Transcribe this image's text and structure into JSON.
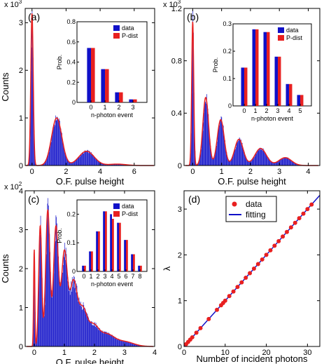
{
  "figure": {
    "colors": {
      "data": "#1010c8",
      "pdist": "#e82020",
      "fit": "#1010c8",
      "axis": "#000000"
    }
  },
  "chart_data": [
    {
      "panel": "(a)",
      "type": "bar",
      "xlabel": "O.F. pulse height",
      "ylabel": "Counts",
      "xlim": [
        -0.4,
        7.2
      ],
      "ylim": [
        0,
        3.3
      ],
      "scale_label": "x 10^3",
      "scale_base": "x 10",
      "scale_exp": "3",
      "xticks": [
        "0",
        "2",
        "4",
        "6"
      ],
      "yticks": [
        "0",
        "1",
        "2",
        "3"
      ],
      "peaks": [
        {
          "center": 0.0,
          "sigma": 0.07,
          "height": 3.2
        },
        {
          "center": 1.45,
          "sigma": 0.3,
          "height": 1.0
        },
        {
          "center": 3.2,
          "sigma": 0.45,
          "height": 0.3
        },
        {
          "center": 5.0,
          "sigma": 0.5,
          "height": 0.03
        }
      ],
      "inset": {
        "type": "bar",
        "xlabel": "n-photon event",
        "ylabel": "Prob.",
        "categories": [
          "0",
          "1",
          "2",
          "3"
        ],
        "ylim": [
          0,
          0.8
        ],
        "yticks": [
          "0",
          "0.2",
          "0.4",
          "0.6",
          "0.8"
        ],
        "series": [
          {
            "name": "data",
            "values": [
              0.54,
              0.33,
              0.1,
              0.03
            ]
          },
          {
            "name": "P-dist",
            "values": [
              0.54,
              0.33,
              0.1,
              0.03
            ]
          }
        ]
      }
    },
    {
      "panel": "(b)",
      "type": "bar",
      "xlabel": "O.F. pulse height",
      "ylabel": "",
      "xlim": [
        -0.3,
        4.4
      ],
      "ylim": [
        0,
        1.2
      ],
      "scale_label": "x 10^3",
      "scale_base": "x 10",
      "scale_exp": "3",
      "xticks": [
        "0",
        "1",
        "2",
        "3",
        "4"
      ],
      "yticks": [
        "0",
        "0.4",
        "0.8",
        "1.2"
      ],
      "peaks": [
        {
          "center": 0.0,
          "sigma": 0.035,
          "height": 1.1
        },
        {
          "center": 0.45,
          "sigma": 0.1,
          "height": 0.52
        },
        {
          "center": 0.97,
          "sigma": 0.12,
          "height": 0.35
        },
        {
          "center": 1.6,
          "sigma": 0.15,
          "height": 0.2
        },
        {
          "center": 2.35,
          "sigma": 0.2,
          "height": 0.13
        },
        {
          "center": 3.2,
          "sigma": 0.22,
          "height": 0.06
        }
      ],
      "inset": {
        "type": "bar",
        "xlabel": "n-photon event",
        "ylabel": "Prob.",
        "categories": [
          "0",
          "1",
          "2",
          "3",
          "4",
          "5"
        ],
        "ylim": [
          0,
          0.3
        ],
        "yticks": [
          "0",
          "0.1",
          "0.2",
          "0.3"
        ],
        "series": [
          {
            "name": "data",
            "values": [
              0.14,
              0.28,
              0.27,
              0.18,
              0.08,
              0.04
            ]
          },
          {
            "name": "P-dist",
            "values": [
              0.14,
              0.28,
              0.27,
              0.18,
              0.08,
              0.04
            ]
          }
        ]
      }
    },
    {
      "panel": "(c)",
      "type": "bar",
      "xlabel": "O.F. pulse height",
      "ylabel": "Counts",
      "xlim": [
        -0.3,
        4.0
      ],
      "ylim": [
        0,
        4.0
      ],
      "scale_label": "x 10^2",
      "scale_base": "x 10",
      "scale_exp": "2",
      "xticks": [
        "0",
        "1",
        "2",
        "3",
        "4"
      ],
      "yticks": [
        "0",
        "1",
        "2",
        "3",
        "4"
      ],
      "peaks": [
        {
          "center": 0.0,
          "sigma": 0.02,
          "height": 2.5
        },
        {
          "center": 0.2,
          "sigma": 0.05,
          "height": 3.1
        },
        {
          "center": 0.45,
          "sigma": 0.07,
          "height": 3.5
        },
        {
          "center": 0.72,
          "sigma": 0.08,
          "height": 3.05
        },
        {
          "center": 1.0,
          "sigma": 0.1,
          "height": 2.4
        },
        {
          "center": 1.3,
          "sigma": 0.12,
          "height": 1.6
        },
        {
          "center": 1.6,
          "sigma": 0.14,
          "height": 0.9
        },
        {
          "center": 1.95,
          "sigma": 0.18,
          "height": 0.5
        },
        {
          "center": 2.4,
          "sigma": 0.25,
          "height": 0.3
        },
        {
          "center": 3.0,
          "sigma": 0.3,
          "height": 0.12
        }
      ],
      "inset": {
        "type": "bar",
        "xlabel": "n-photon event",
        "ylabel": "Prob.",
        "categories": [
          "0",
          "1",
          "2",
          "3",
          "4",
          "5",
          "6",
          "7",
          "8"
        ],
        "ylim": [
          0,
          0.25
        ],
        "yticks": [
          "0",
          "0.1",
          "0.2"
        ],
        "series": [
          {
            "name": "data",
            "values": [
              0.02,
              0.07,
              0.14,
              0.21,
              0.2,
              0.17,
              0.11,
              0.06,
              0.02
            ]
          },
          {
            "name": "P-dist",
            "values": [
              0.02,
              0.07,
              0.14,
              0.21,
              0.2,
              0.17,
              0.11,
              0.06,
              0.02
            ]
          }
        ]
      }
    },
    {
      "panel": "(d)",
      "type": "scatter",
      "xlabel": "Number of incident photons",
      "ylabel": "λ",
      "xlim": [
        0,
        33
      ],
      "ylim": [
        0,
        3.4
      ],
      "xticks": [
        "0",
        "10",
        "20",
        "30"
      ],
      "yticks": [
        "0",
        "1",
        "2",
        "3"
      ],
      "series": [
        {
          "name": "data",
          "x": [
            0.5,
            1,
            1.5,
            2,
            3,
            4,
            6,
            8,
            9,
            9.5,
            10,
            11,
            12,
            13,
            14,
            15,
            16,
            17,
            18,
            19,
            20,
            21,
            22,
            23,
            24,
            25,
            26,
            27,
            28,
            29,
            30,
            31
          ],
          "y": [
            0.05,
            0.1,
            0.15,
            0.2,
            0.3,
            0.4,
            0.6,
            0.8,
            0.9,
            0.95,
            1.0,
            1.1,
            1.2,
            1.3,
            1.4,
            1.5,
            1.6,
            1.7,
            1.8,
            1.9,
            2.0,
            2.1,
            2.2,
            2.3,
            2.4,
            2.5,
            2.6,
            2.7,
            2.8,
            2.9,
            3.0,
            3.1
          ]
        },
        {
          "name": "fitting",
          "x": [
            0,
            33
          ],
          "y": [
            0,
            3.3
          ]
        }
      ]
    }
  ]
}
